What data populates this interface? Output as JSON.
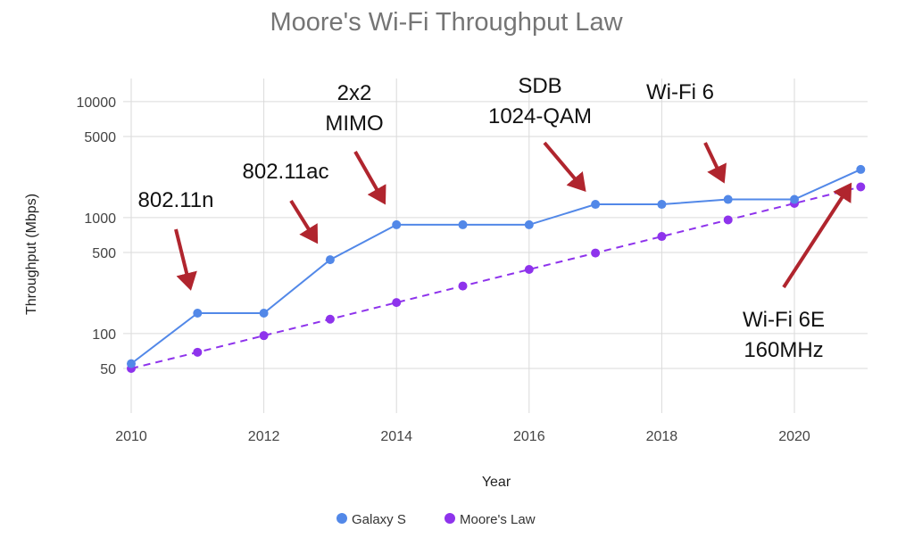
{
  "chart_data": {
    "type": "line",
    "title": "Moore's Wi-Fi Throughput Law",
    "xlabel": "Year",
    "ylabel": "Throughput (Mbps)",
    "y_scale": "log",
    "xlim": [
      2010,
      2021
    ],
    "x_ticks": [
      2010,
      2012,
      2014,
      2016,
      2018,
      2020
    ],
    "y_ticks": [
      50,
      100,
      500,
      1000,
      5000,
      10000
    ],
    "grid": true,
    "legend_position": "bottom",
    "x": [
      2010,
      2011,
      2012,
      2013,
      2014,
      2015,
      2016,
      2017,
      2018,
      2019,
      2020,
      2021
    ],
    "series": [
      {
        "name": "Galaxy S",
        "color": "#5288e8",
        "line_style": "solid",
        "values": [
          55,
          150,
          150,
          433,
          867,
          867,
          867,
          1300,
          1300,
          1433,
          1433,
          2600
        ]
      },
      {
        "name": "Moore's Law",
        "color": "#8e33ec",
        "line_style": "dashed",
        "values": [
          50,
          69,
          96,
          133,
          185,
          257,
          357,
          495,
          687,
          955,
          1325,
          1840
        ]
      }
    ],
    "annotations": [
      {
        "lines": [
          "802.11n"
        ]
      },
      {
        "lines": [
          "802.11ac"
        ]
      },
      {
        "lines": [
          "2x2",
          "MIMO"
        ]
      },
      {
        "lines": [
          "SDB",
          "1024-QAM"
        ]
      },
      {
        "lines": [
          "Wi-Fi 6"
        ]
      },
      {
        "lines": [
          "Wi-Fi 6E",
          "160MHz"
        ]
      }
    ],
    "annotation_arrow_color": "#b0252e"
  }
}
